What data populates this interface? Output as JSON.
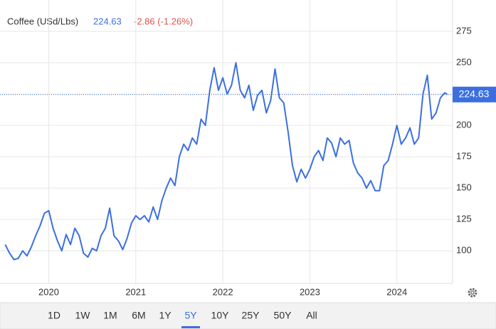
{
  "chart_data": {
    "type": "line",
    "title": "Coffee (USd/Lbs)",
    "price": 224.63,
    "change": "-2.86 (-1.26%)",
    "ranges": [
      "1D",
      "1W",
      "1M",
      "6M",
      "1Y",
      "5Y",
      "10Y",
      "25Y",
      "50Y",
      "All"
    ],
    "selected_range": "5Y",
    "x": [
      2019.5,
      2019.55,
      2019.6,
      2019.65,
      2019.7,
      2019.75,
      2019.8,
      2019.85,
      2019.9,
      2019.95,
      2020.0,
      2020.05,
      2020.1,
      2020.15,
      2020.2,
      2020.25,
      2020.3,
      2020.35,
      2020.4,
      2020.45,
      2020.5,
      2020.55,
      2020.6,
      2020.65,
      2020.7,
      2020.75,
      2020.8,
      2020.85,
      2020.9,
      2020.95,
      2021.0,
      2021.05,
      2021.1,
      2021.15,
      2021.2,
      2021.25,
      2021.3,
      2021.35,
      2021.4,
      2021.45,
      2021.5,
      2021.55,
      2021.6,
      2021.65,
      2021.7,
      2021.75,
      2021.8,
      2021.85,
      2021.9,
      2021.95,
      2022.0,
      2022.05,
      2022.1,
      2022.15,
      2022.2,
      2022.25,
      2022.3,
      2022.35,
      2022.4,
      2022.45,
      2022.5,
      2022.55,
      2022.6,
      2022.65,
      2022.7,
      2022.75,
      2022.8,
      2022.85,
      2022.9,
      2022.95,
      2023.0,
      2023.05,
      2023.1,
      2023.15,
      2023.2,
      2023.25,
      2023.3,
      2023.35,
      2023.4,
      2023.45,
      2023.5,
      2023.55,
      2023.6,
      2023.65,
      2023.7,
      2023.75,
      2023.8,
      2023.85,
      2023.9,
      2023.95,
      2024.0,
      2024.05,
      2024.1,
      2024.15,
      2024.2,
      2024.25,
      2024.3,
      2024.35,
      2024.4,
      2024.45,
      2024.5,
      2024.55,
      2024.58
    ],
    "series": [
      {
        "name": "Coffee",
        "color": "#3b6fe0",
        "values": [
          105,
          98,
          93,
          94,
          100,
          96,
          103,
          112,
          120,
          130,
          132,
          118,
          108,
          100,
          113,
          105,
          118,
          112,
          98,
          95,
          102,
          100,
          112,
          118,
          134,
          112,
          108,
          101,
          110,
          122,
          128,
          125,
          128,
          123,
          135,
          125,
          140,
          150,
          158,
          152,
          175,
          185,
          180,
          190,
          185,
          205,
          200,
          228,
          246,
          228,
          238,
          225,
          232,
          250,
          228,
          222,
          232,
          212,
          224,
          228,
          210,
          220,
          245,
          222,
          218,
          195,
          168,
          155,
          165,
          158,
          165,
          175,
          180,
          172,
          190,
          186,
          175,
          190,
          185,
          188,
          170,
          162,
          158,
          150,
          156,
          148,
          148,
          168,
          172,
          185,
          200,
          185,
          190,
          198,
          185,
          190,
          225,
          240,
          205,
          210,
          222,
          226,
          224.63
        ]
      }
    ],
    "xlim": [
      2019.44,
      2024.64
    ],
    "ylim": [
      74,
      300
    ],
    "xticks": [
      2020,
      2021,
      2022,
      2023,
      2024
    ],
    "yticks": [
      100,
      125,
      150,
      175,
      200,
      225,
      250,
      275
    ],
    "grid": true
  }
}
